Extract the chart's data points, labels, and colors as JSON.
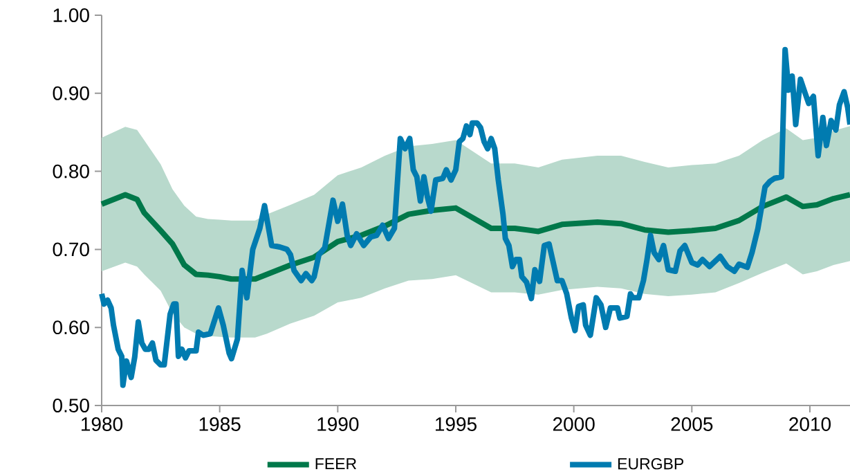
{
  "chart_data": {
    "type": "line",
    "xlim": [
      1980,
      2011.7
    ],
    "xticks": [
      1980,
      1985,
      1990,
      1995,
      2000,
      2005,
      2010
    ],
    "ylim": [
      0.5,
      1.0
    ],
    "yticks": [
      {
        "value": 0.5,
        "label": "0.50"
      },
      {
        "value": 0.6,
        "label": "0.60"
      },
      {
        "value": 0.7,
        "label": "0.70"
      },
      {
        "value": 0.8,
        "label": "0.80"
      },
      {
        "value": 0.9,
        "label": "0.90"
      },
      {
        "value": 1.0,
        "label": "1.00"
      }
    ],
    "grid": false,
    "legend": "bottom",
    "marker": "none",
    "line_style": "solid",
    "series": [
      {
        "name": "FEER",
        "color": "#00784a",
        "x": [
          1980,
          1981,
          1981.5,
          1981.8,
          1982.5,
          1983,
          1983.5,
          1984,
          1984.5,
          1985,
          1985.5,
          1986.5,
          1987,
          1988,
          1989,
          1990,
          1991,
          1992,
          1993,
          1994,
          1995,
          1996.5,
          1997.5,
          1998.5,
          1999.5,
          2001,
          2002,
          2003,
          2004,
          2005,
          2006,
          2007,
          2008,
          2009,
          2009.7,
          2010.3,
          2011,
          2011.7
        ],
        "values": [
          0.758,
          0.77,
          0.764,
          0.747,
          0.724,
          0.707,
          0.68,
          0.668,
          0.667,
          0.665,
          0.662,
          0.662,
          0.668,
          0.68,
          0.69,
          0.71,
          0.718,
          0.73,
          0.745,
          0.75,
          0.753,
          0.727,
          0.727,
          0.723,
          0.732,
          0.735,
          0.733,
          0.725,
          0.722,
          0.724,
          0.727,
          0.737,
          0.755,
          0.767,
          0.755,
          0.757,
          0.765,
          0.77
        ],
        "upper": [
          0.843,
          0.857,
          0.853,
          0.84,
          0.809,
          0.777,
          0.756,
          0.742,
          0.739,
          0.738,
          0.737,
          0.737,
          0.745,
          0.757,
          0.77,
          0.795,
          0.805,
          0.82,
          0.832,
          0.835,
          0.84,
          0.81,
          0.81,
          0.805,
          0.815,
          0.82,
          0.82,
          0.812,
          0.805,
          0.808,
          0.81,
          0.82,
          0.84,
          0.855,
          0.84,
          0.843,
          0.852,
          0.858
        ],
        "lower": [
          0.672,
          0.683,
          0.678,
          0.668,
          0.647,
          0.618,
          0.6,
          0.592,
          0.589,
          0.588,
          0.587,
          0.587,
          0.592,
          0.605,
          0.615,
          0.632,
          0.638,
          0.65,
          0.66,
          0.662,
          0.667,
          0.645,
          0.645,
          0.642,
          0.648,
          0.652,
          0.65,
          0.643,
          0.64,
          0.642,
          0.645,
          0.657,
          0.67,
          0.682,
          0.668,
          0.672,
          0.68,
          0.685
        ]
      },
      {
        "name": "EURGBP",
        "color": "#007bb0",
        "x": [
          1980.0,
          1980.1,
          1980.25,
          1980.4,
          1980.5,
          1980.7,
          1980.85,
          1980.9,
          1981.05,
          1981.25,
          1981.4,
          1981.55,
          1981.7,
          1981.85,
          1982.0,
          1982.15,
          1982.3,
          1982.5,
          1982.65,
          1982.9,
          1983.05,
          1983.15,
          1983.25,
          1983.4,
          1983.55,
          1983.7,
          1984.0,
          1984.1,
          1984.3,
          1984.6,
          1984.95,
          1985.15,
          1985.4,
          1985.5,
          1985.75,
          1985.95,
          1986.15,
          1986.4,
          1986.7,
          1986.9,
          1987.2,
          1987.55,
          1987.85,
          1988.0,
          1988.15,
          1988.45,
          1988.65,
          1988.9,
          1989.0,
          1989.2,
          1989.45,
          1989.8,
          1990.0,
          1990.2,
          1990.4,
          1990.55,
          1990.8,
          1991.1,
          1991.4,
          1991.65,
          1991.9,
          1992.15,
          1992.4,
          1992.65,
          1992.85,
          1993.05,
          1993.2,
          1993.35,
          1993.5,
          1993.65,
          1993.8,
          1993.95,
          1994.15,
          1994.45,
          1994.6,
          1994.8,
          1995.0,
          1995.15,
          1995.3,
          1995.45,
          1995.6,
          1995.7,
          1995.9,
          1996.05,
          1996.2,
          1996.35,
          1996.5,
          1996.65,
          1996.8,
          1997.0,
          1997.1,
          1997.25,
          1997.4,
          1997.55,
          1997.7,
          1997.8,
          1998.0,
          1998.2,
          1998.35,
          1998.55,
          1998.75,
          1998.95,
          1999.1,
          1999.3,
          1999.5,
          1999.7,
          1999.9,
          2000.05,
          2000.2,
          2000.4,
          2000.5,
          2000.7,
          2000.95,
          2001.15,
          2001.35,
          2001.55,
          2001.85,
          2001.95,
          2002.25,
          2002.4,
          2002.5,
          2002.75,
          2002.95,
          2003.1,
          2003.25,
          2003.4,
          2003.6,
          2003.8,
          2004.0,
          2004.3,
          2004.5,
          2004.7,
          2005.0,
          2005.25,
          2005.45,
          2005.75,
          2006.2,
          2006.5,
          2006.8,
          2007.0,
          2007.35,
          2007.55,
          2007.8,
          2008.1,
          2008.3,
          2008.5,
          2008.8,
          2008.95,
          2009.1,
          2009.25,
          2009.4,
          2009.6,
          2009.8,
          2009.95,
          2010.15,
          2010.35,
          2010.55,
          2010.7,
          2010.9,
          2011.1,
          2011.25,
          2011.45,
          2011.6,
          2011.7
        ],
        "values": [
          0.643,
          0.63,
          0.635,
          0.625,
          0.603,
          0.572,
          0.563,
          0.526,
          0.557,
          0.536,
          0.562,
          0.607,
          0.58,
          0.572,
          0.572,
          0.58,
          0.558,
          0.552,
          0.552,
          0.617,
          0.63,
          0.63,
          0.563,
          0.572,
          0.561,
          0.57,
          0.57,
          0.594,
          0.59,
          0.592,
          0.625,
          0.603,
          0.567,
          0.56,
          0.585,
          0.673,
          0.638,
          0.7,
          0.727,
          0.756,
          0.705,
          0.703,
          0.7,
          0.693,
          0.673,
          0.66,
          0.669,
          0.66,
          0.665,
          0.693,
          0.702,
          0.763,
          0.736,
          0.758,
          0.718,
          0.705,
          0.72,
          0.705,
          0.716,
          0.718,
          0.731,
          0.714,
          0.727,
          0.842,
          0.829,
          0.842,
          0.802,
          0.793,
          0.762,
          0.793,
          0.767,
          0.749,
          0.789,
          0.791,
          0.802,
          0.789,
          0.802,
          0.838,
          0.842,
          0.858,
          0.847,
          0.862,
          0.862,
          0.856,
          0.838,
          0.829,
          0.842,
          0.829,
          0.789,
          0.745,
          0.714,
          0.705,
          0.678,
          0.687,
          0.687,
          0.665,
          0.658,
          0.637,
          0.674,
          0.659,
          0.705,
          0.707,
          0.687,
          0.66,
          0.66,
          0.643,
          0.612,
          0.596,
          0.627,
          0.629,
          0.603,
          0.59,
          0.638,
          0.629,
          0.6,
          0.625,
          0.625,
          0.612,
          0.614,
          0.643,
          0.638,
          0.638,
          0.66,
          0.687,
          0.718,
          0.696,
          0.687,
          0.705,
          0.674,
          0.672,
          0.698,
          0.705,
          0.683,
          0.68,
          0.687,
          0.678,
          0.691,
          0.678,
          0.672,
          0.681,
          0.677,
          0.696,
          0.727,
          0.78,
          0.787,
          0.791,
          0.793,
          0.956,
          0.904,
          0.922,
          0.86,
          0.918,
          0.9,
          0.887,
          0.896,
          0.82,
          0.869,
          0.833,
          0.865,
          0.853,
          0.885,
          0.902,
          0.882,
          0.86
        ]
      }
    ]
  }
}
